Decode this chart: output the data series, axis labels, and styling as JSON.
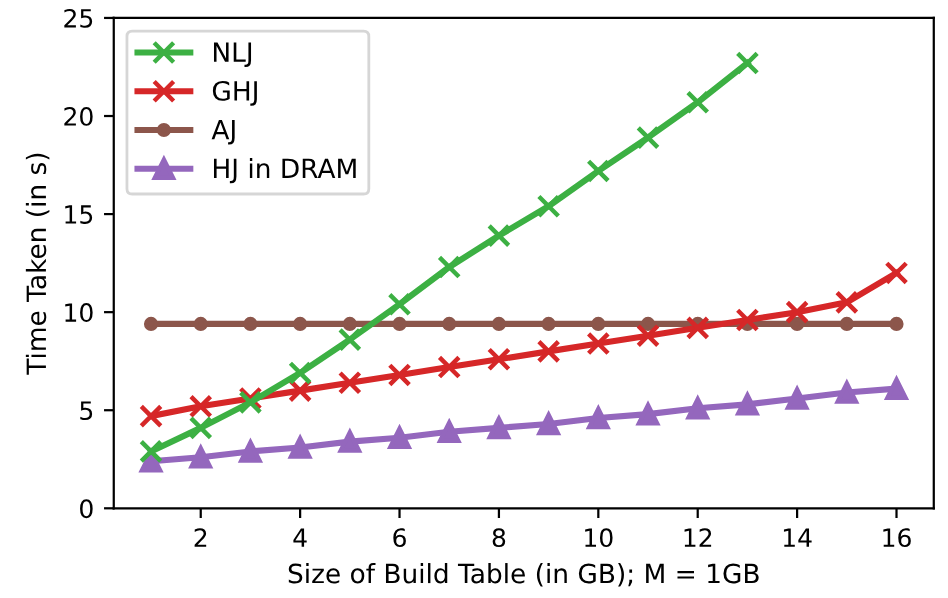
{
  "chart_data": {
    "type": "line",
    "xlabel": "Size of Build Table (in GB); M = 1GB",
    "ylabel": "Time Taken (in s)",
    "xlim": [
      0.25,
      16.75
    ],
    "xticks": [
      2,
      4,
      6,
      8,
      10,
      12,
      14,
      16
    ],
    "ylim": [
      0,
      25
    ],
    "yticks": [
      0,
      5,
      10,
      15,
      20,
      25
    ],
    "grid": false,
    "legend": "top left",
    "series": [
      {
        "name": "NLJ",
        "color": "#3cb043",
        "marker": "cross",
        "x": [
          1,
          2,
          3,
          4,
          5,
          6,
          7,
          8,
          9,
          10,
          11,
          12,
          13
        ],
        "values": [
          2.9,
          4.1,
          5.4,
          6.9,
          8.6,
          10.4,
          12.3,
          13.9,
          15.4,
          17.2,
          18.9,
          20.7,
          22.7
        ]
      },
      {
        "name": "GHJ",
        "color": "#d62728",
        "marker": "cross",
        "x": [
          1,
          2,
          3,
          4,
          5,
          6,
          7,
          8,
          9,
          10,
          11,
          12,
          13,
          14,
          15,
          16
        ],
        "values": [
          4.7,
          5.2,
          5.6,
          6.0,
          6.4,
          6.8,
          7.2,
          7.6,
          8.0,
          8.4,
          8.8,
          9.2,
          9.6,
          10.0,
          10.5,
          12.0
        ]
      },
      {
        "name": "AJ",
        "color": "#8c564b",
        "marker": "circle",
        "x": [
          1,
          2,
          3,
          4,
          5,
          6,
          7,
          8,
          9,
          10,
          11,
          12,
          13,
          14,
          15,
          16
        ],
        "values": [
          9.4,
          9.4,
          9.4,
          9.4,
          9.4,
          9.4,
          9.4,
          9.4,
          9.4,
          9.4,
          9.4,
          9.4,
          9.4,
          9.4,
          9.4,
          9.4
        ]
      },
      {
        "name": "HJ in DRAM",
        "color": "#9467bd",
        "marker": "triangle",
        "x": [
          1,
          2,
          3,
          4,
          5,
          6,
          7,
          8,
          9,
          10,
          11,
          12,
          13,
          14,
          15,
          16
        ],
        "values": [
          2.4,
          2.6,
          2.9,
          3.1,
          3.4,
          3.6,
          3.9,
          4.1,
          4.3,
          4.6,
          4.8,
          5.1,
          5.3,
          5.6,
          5.9,
          6.1
        ]
      }
    ]
  }
}
